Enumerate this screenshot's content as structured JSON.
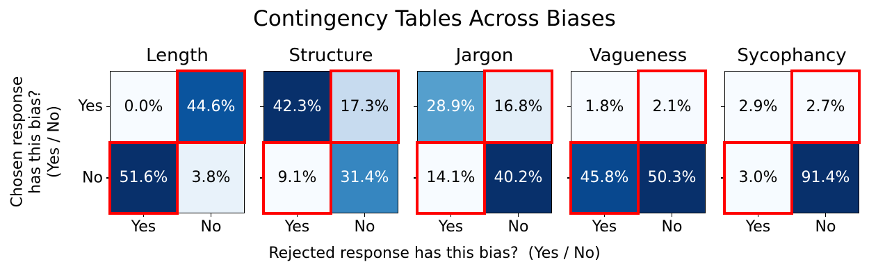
{
  "chart_data": {
    "type": "heatmap",
    "title": "Contingency Tables Across Biases",
    "xlabel": "Rejected response has this bias?  (Yes / No)",
    "ylabel_lines": [
      "Chosen response",
      "has this bias?",
      "(Yes / No)"
    ],
    "rows": [
      "Yes",
      "No"
    ],
    "cols": [
      "Yes",
      "No"
    ],
    "unit": "%",
    "colormap": "Blues",
    "normalization": "per-table min-max",
    "colors": {
      "highlight": "#ff0000",
      "spine": "#000000",
      "text_on_dark": "#ffffff",
      "text_on_light": "#000000",
      "background": "#ffffff"
    },
    "highlight": {
      "cells": [
        [
          0,
          1
        ],
        [
          1,
          0
        ]
      ],
      "linewidth": 4
    },
    "tables": [
      {
        "name": "Length",
        "values": [
          [
            0.0,
            44.6
          ],
          [
            51.6,
            3.8
          ]
        ]
      },
      {
        "name": "Structure",
        "values": [
          [
            42.3,
            17.3
          ],
          [
            9.1,
            31.4
          ]
        ]
      },
      {
        "name": "Jargon",
        "values": [
          [
            28.9,
            16.8
          ],
          [
            14.1,
            40.2
          ]
        ]
      },
      {
        "name": "Vagueness",
        "values": [
          [
            1.8,
            2.1
          ],
          [
            45.8,
            50.3
          ]
        ]
      },
      {
        "name": "Sycophancy",
        "values": [
          [
            2.9,
            2.7
          ],
          [
            3.0,
            91.4
          ]
        ]
      }
    ]
  }
}
